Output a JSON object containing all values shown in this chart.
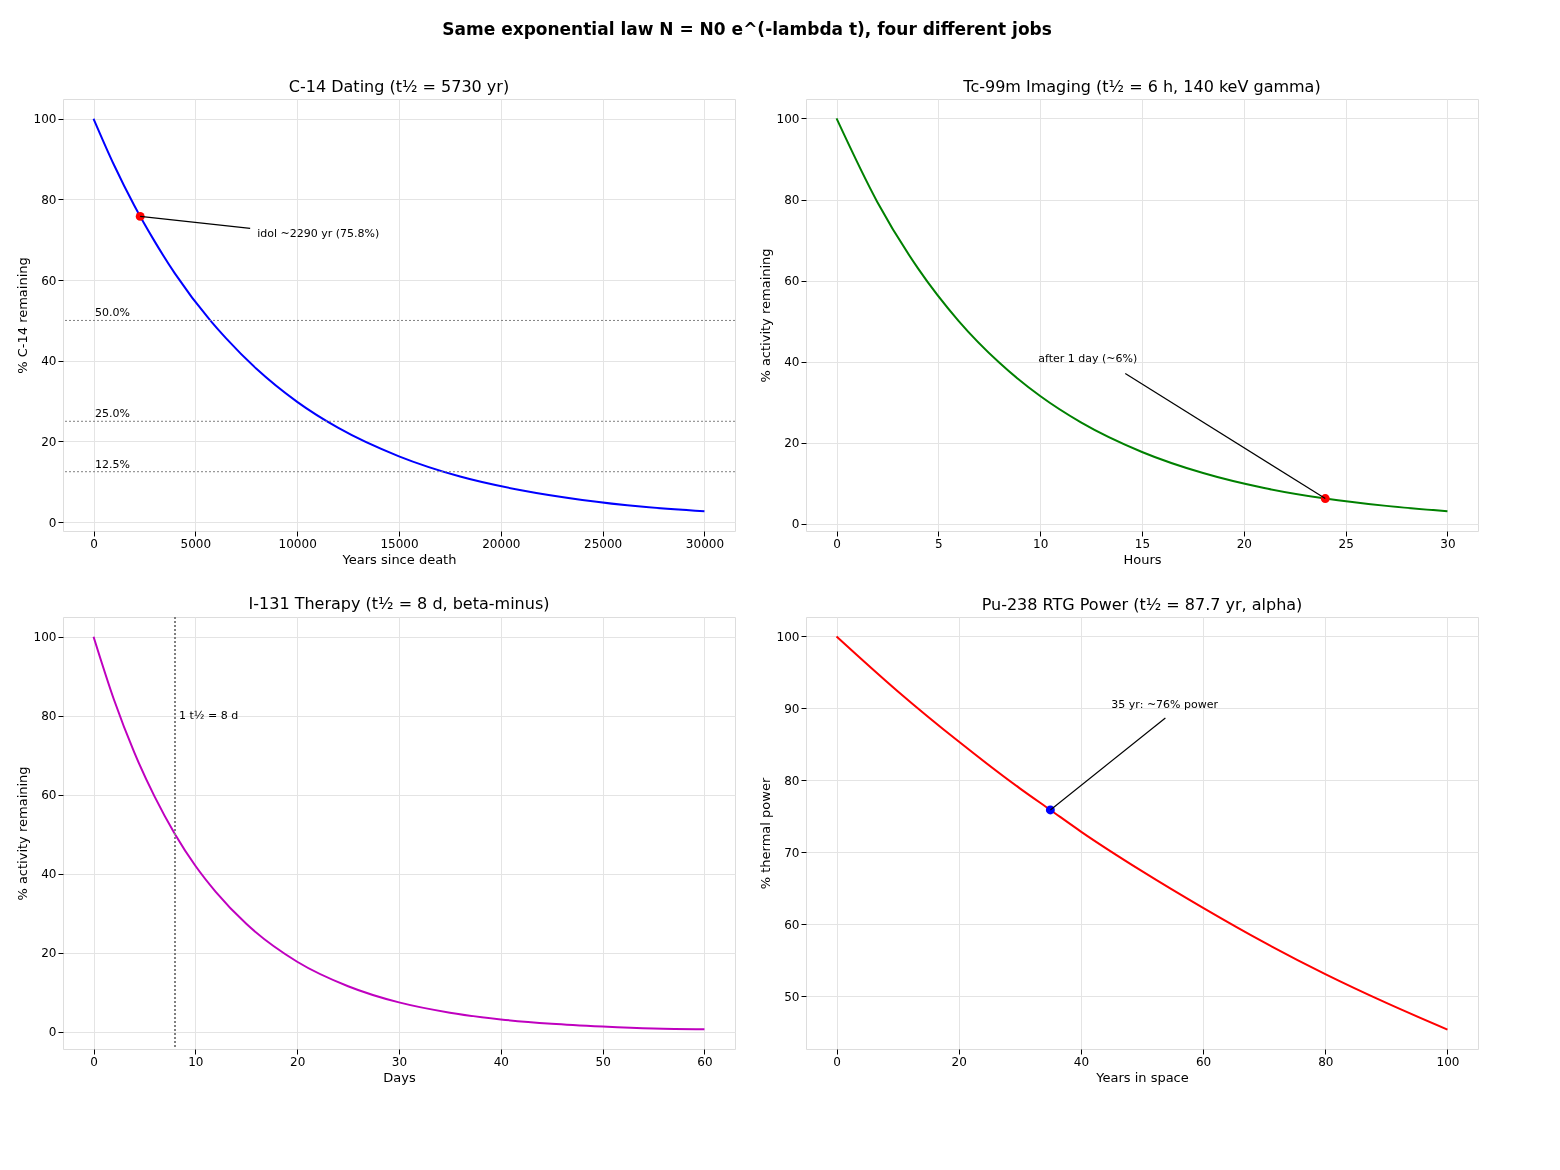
{
  "chart_data": [
    {
      "type": "other",
      "title": "Same exponential law N = N0 e^(-lambda t), four different jobs"
    },
    {
      "type": "line",
      "title": "C-14 Dating  (t½ = 5730 yr)",
      "xlabel": "Years since death",
      "ylabel": "% C-14 remaining",
      "xlim": [
        -1500,
        31500
      ],
      "ylim": [
        -2.2,
        104.9
      ],
      "xticks": [
        0,
        5000,
        10000,
        15000,
        20000,
        25000,
        30000
      ],
      "yticks": [
        0,
        20,
        40,
        60,
        80,
        100
      ],
      "grid": true,
      "series": [
        {
          "color": "#0000ff",
          "line_style": "solid",
          "x": [
            0,
            1000,
            2000,
            3000,
            4000,
            5730,
            6500,
            8000,
            10000,
            12000,
            15000,
            18000,
            21000,
            24000,
            27000,
            30000
          ],
          "values": [
            100,
            88.6,
            78.5,
            69.6,
            61.6,
            50,
            45.6,
            38.0,
            29.8,
            23.4,
            16.3,
            11.3,
            7.9,
            5.5,
            3.8,
            2.7
          ]
        },
        {
          "type": "scatter",
          "color": "#ff0000",
          "marker": "circle",
          "x": [
            2290
          ],
          "values": [
            75.8
          ]
        }
      ],
      "ref_lines": [
        {
          "axis": "y",
          "value": 50,
          "label": "50.0%",
          "color": "#808080",
          "line_style": "dotted"
        },
        {
          "axis": "y",
          "value": 25,
          "label": "25.0%",
          "color": "#808080",
          "line_style": "dotted"
        },
        {
          "axis": "y",
          "value": 12.5,
          "label": "12.5%",
          "color": "#808080",
          "line_style": "dotted"
        }
      ],
      "annotations": [
        {
          "text": "idol ~2290 yr (75.8%)",
          "x": 2290,
          "y": 75.8
        }
      ]
    },
    {
      "type": "line",
      "title": "Tc-99m Imaging  (t½ = 6 h, 140 keV gamma)",
      "xlabel": "Hours",
      "ylabel": "% activity remaining",
      "xlim": [
        -1.5,
        31.5
      ],
      "ylim": [
        -1.8,
        104.8
      ],
      "xticks": [
        0,
        5,
        10,
        15,
        20,
        25,
        30
      ],
      "yticks": [
        0,
        20,
        40,
        60,
        80,
        100
      ],
      "grid": true,
      "series": [
        {
          "color": "#008000",
          "line_style": "solid",
          "x": [
            0,
            2,
            4,
            6,
            8,
            10,
            12,
            15,
            18,
            21,
            24,
            27,
            30
          ],
          "values": [
            100,
            79.4,
            63.0,
            50,
            39.7,
            31.5,
            25,
            17.7,
            12.5,
            8.8,
            6.2,
            4.4,
            3.1
          ]
        },
        {
          "type": "scatter",
          "color": "#ff0000",
          "marker": "circle",
          "x": [
            24
          ],
          "values": [
            6.2
          ]
        }
      ],
      "annotations": [
        {
          "text": "after 1 day (~6%)",
          "x": 24,
          "y": 6.2
        }
      ]
    },
    {
      "type": "line",
      "title": "I-131 Therapy  (t½ = 8 d, beta-minus)",
      "xlabel": "Days",
      "ylabel": "% activity remaining",
      "xlim": [
        -3,
        63
      ],
      "ylim": [
        -4.4,
        105
      ],
      "xticks": [
        0,
        10,
        20,
        30,
        40,
        50,
        60
      ],
      "yticks": [
        0,
        20,
        40,
        60,
        80,
        100
      ],
      "grid": true,
      "series": [
        {
          "color": "#bf00bf",
          "line_style": "solid",
          "x": [
            0,
            2,
            4,
            6,
            8,
            10,
            12,
            15,
            20,
            25,
            30,
            35,
            40,
            45,
            50,
            55,
            60
          ],
          "values": [
            100,
            84.1,
            70.7,
            59.5,
            50,
            42.0,
            35.4,
            27.3,
            17.7,
            11.5,
            7.4,
            4.8,
            3.1,
            2.0,
            1.3,
            0.8,
            0.6
          ]
        }
      ],
      "ref_lines": [
        {
          "axis": "x",
          "value": 8,
          "label": "1 t½ = 8 d",
          "color": "#808080",
          "line_style": "dotted"
        }
      ]
    },
    {
      "type": "line",
      "title": "Pu-238 RTG Power  (t½ = 87.7 yr, alpha)",
      "xlabel": "Years in space",
      "ylabel": "% thermal power",
      "xlim": [
        -5,
        105
      ],
      "ylim": [
        42.7,
        102.7
      ],
      "xticks": [
        0,
        20,
        40,
        60,
        80,
        100
      ],
      "yticks": [
        50,
        60,
        70,
        80,
        90,
        100
      ],
      "grid": true,
      "series": [
        {
          "color": "#ff0000",
          "line_style": "solid",
          "x": [
            0,
            10,
            20,
            30,
            35,
            40,
            50,
            60,
            70,
            80,
            90,
            100
          ],
          "values": [
            100,
            92.4,
            85.4,
            78.9,
            75.9,
            72.9,
            67.4,
            62.3,
            57.5,
            53.1,
            49.1,
            45.4
          ]
        },
        {
          "type": "scatter",
          "color": "#0000ff",
          "marker": "circle",
          "x": [
            35
          ],
          "values": [
            75.9
          ]
        }
      ],
      "annotations": [
        {
          "text": "35 yr: ~76% power",
          "x": 35,
          "y": 75.9
        }
      ]
    }
  ]
}
